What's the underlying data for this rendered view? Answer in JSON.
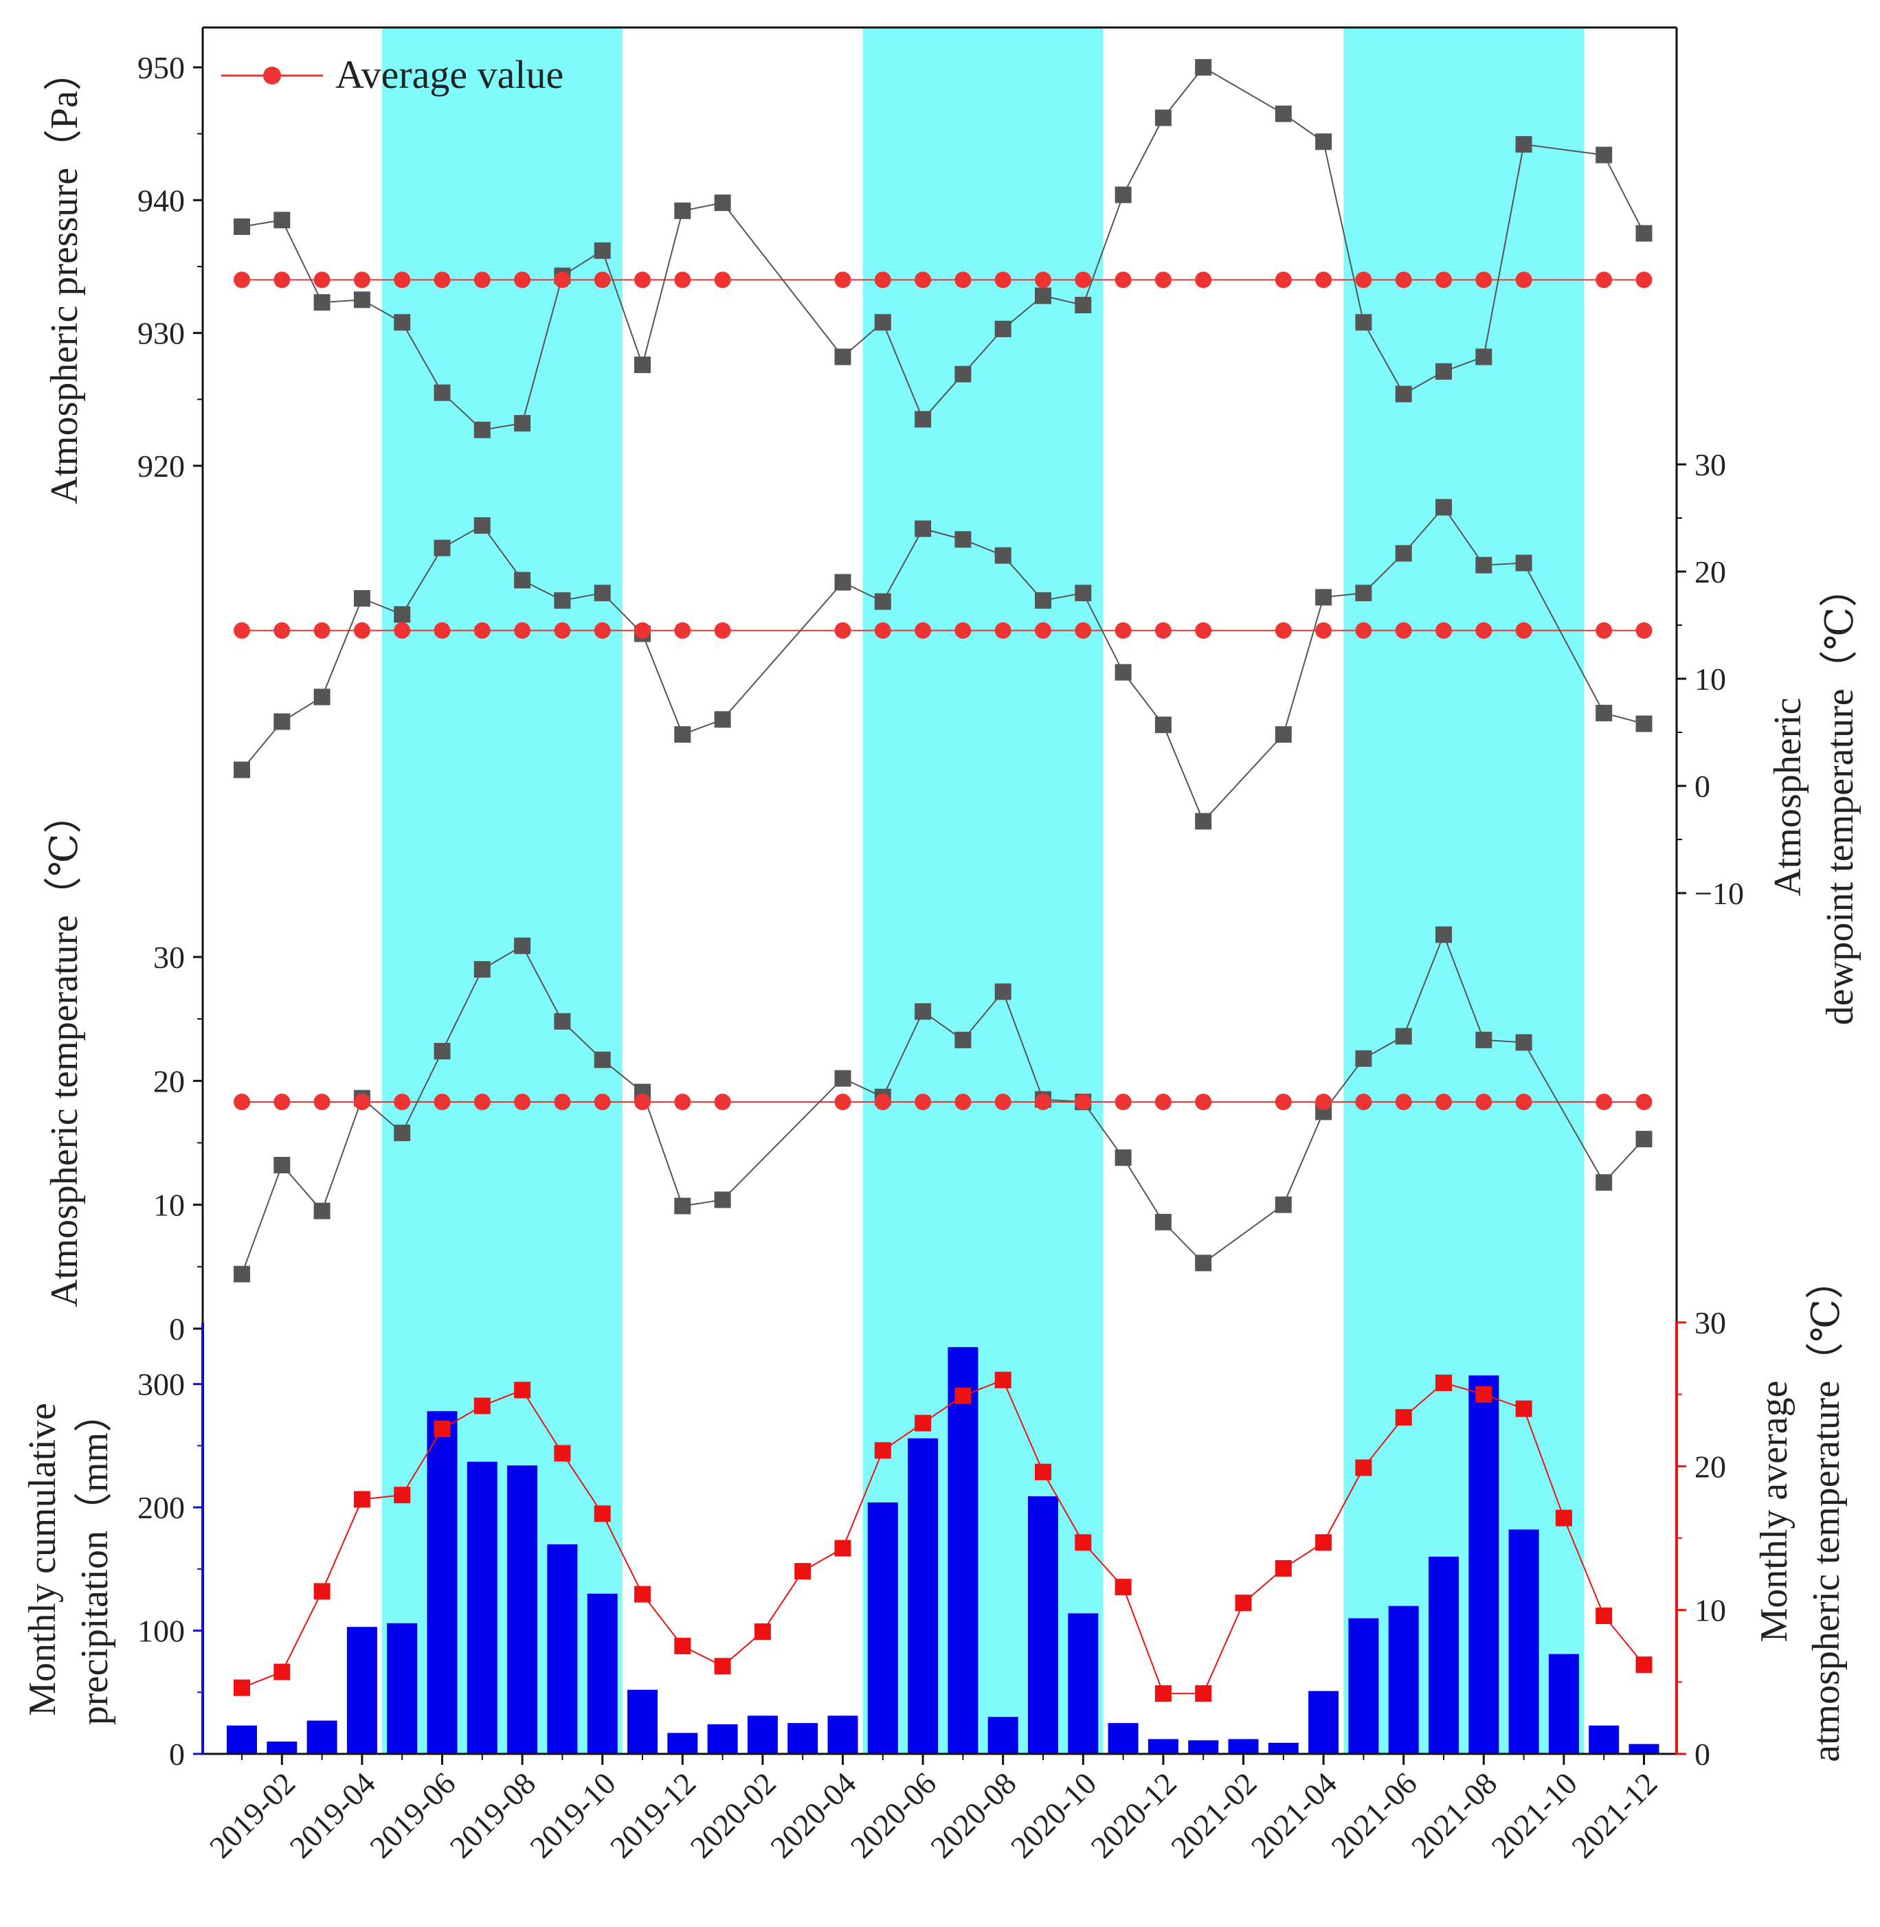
{
  "chart_data": {
    "type": "line",
    "months": [
      "2019-01",
      "2019-02",
      "2019-03",
      "2019-04",
      "2019-05",
      "2019-06",
      "2019-07",
      "2019-08",
      "2019-09",
      "2019-10",
      "2019-11",
      "2019-12",
      "2020-01",
      "2020-02",
      "2020-03",
      "2020-04",
      "2020-05",
      "2020-06",
      "2020-07",
      "2020-08",
      "2020-09",
      "2020-10",
      "2020-11",
      "2020-12",
      "2021-01",
      "2021-02",
      "2021-03",
      "2021-04",
      "2021-05",
      "2021-06",
      "2021-07",
      "2021-08",
      "2021-09",
      "2021-10",
      "2021-11",
      "2021-12"
    ],
    "x_tick_labels": [
      "2019-02",
      "2019-04",
      "2019-06",
      "2019-08",
      "2019-10",
      "2019-12",
      "2020-02",
      "2020-04",
      "2020-06",
      "2020-08",
      "2020-10",
      "2020-12",
      "2021-02",
      "2021-04",
      "2021-06",
      "2021-08",
      "2021-10",
      "2021-12"
    ],
    "x_tick_months": [
      "2019-02",
      "2019-04",
      "2019-06",
      "2019-08",
      "2019-10",
      "2019-12",
      "2020-02",
      "2020-04",
      "2020-06",
      "2020-08",
      "2020-10",
      "2020-12",
      "2021-02",
      "2021-04",
      "2021-06",
      "2021-08",
      "2021-10",
      "2021-12"
    ],
    "shaded_periods": [
      [
        "2019-05",
        "2019-10"
      ],
      [
        "2020-05",
        "2020-10"
      ],
      [
        "2021-05",
        "2021-10"
      ]
    ],
    "legend": {
      "label": "Average value",
      "placement": "top-left"
    },
    "colors": {
      "shade": "#80FAFA",
      "series": "#555555",
      "average": "#EE3333",
      "precip": "#0000EE",
      "monthly_temp": "#EE1111"
    },
    "panels": {
      "pressure": {
        "ylabel": "Atmospheric pressure（Pa）",
        "ylim": [
          920,
          950
        ],
        "ticks": [
          "920",
          "930",
          "940",
          "950"
        ],
        "average": 934,
        "months": [
          "2019-01",
          "2019-02",
          "2019-03",
          "2019-04",
          "2019-05",
          "2019-06",
          "2019-07",
          "2019-08",
          "2019-09",
          "2019-10",
          "2019-11",
          "2019-12",
          "2020-01",
          "2020-04",
          "2020-05",
          "2020-06",
          "2020-07",
          "2020-08",
          "2020-09",
          "2020-10",
          "2020-11",
          "2020-12",
          "2021-01",
          "2021-03",
          "2021-04",
          "2021-05",
          "2021-06",
          "2021-07",
          "2021-08",
          "2021-09",
          "2021-11",
          "2021-12"
        ],
        "values": [
          938,
          938.5,
          932.3,
          932.5,
          930.8,
          925.5,
          922.7,
          923.2,
          934.3,
          936.2,
          927.6,
          939.2,
          939.8,
          928.2,
          930.8,
          923.5,
          926.9,
          930.3,
          932.8,
          932.1,
          940.4,
          946.2,
          950,
          946.5,
          944.4,
          930.8,
          925.4,
          927.1,
          928.2,
          944.2,
          943.4,
          937.5
        ]
      },
      "dewpoint": {
        "ylabel": "Atmospheric dewpoint temperature（℃）",
        "ylabel_lines": [
          "Atmospheric",
          "dewpoint temperature（℃）"
        ],
        "ylim": [
          -10,
          30
        ],
        "ticks": [
          "−10",
          "0",
          "10",
          "20",
          "30"
        ],
        "average": 14.5,
        "months": [
          "2019-01",
          "2019-02",
          "2019-03",
          "2019-04",
          "2019-05",
          "2019-06",
          "2019-07",
          "2019-08",
          "2019-09",
          "2019-10",
          "2019-11",
          "2019-12",
          "2020-01",
          "2020-04",
          "2020-05",
          "2020-06",
          "2020-07",
          "2020-08",
          "2020-09",
          "2020-10",
          "2020-11",
          "2020-12",
          "2021-01",
          "2021-03",
          "2021-04",
          "2021-05",
          "2021-06",
          "2021-07",
          "2021-08",
          "2021-09",
          "2021-11",
          "2021-12"
        ],
        "values": [
          1.5,
          6,
          8.3,
          17.5,
          16,
          22.2,
          24.3,
          19.2,
          17.3,
          18,
          14.2,
          4.8,
          6.2,
          19,
          17.2,
          24,
          23,
          21.5,
          17.3,
          18,
          10.6,
          5.7,
          -3.3,
          4.8,
          17.6,
          18,
          21.7,
          26,
          20.6,
          20.8,
          6.8,
          5.8
        ]
      },
      "temperature": {
        "ylabel": "Atmospheric temperature（℃）",
        "ylim": [
          0,
          30
        ],
        "ticks": [
          "0",
          "10",
          "20",
          "30"
        ],
        "average": 18.3,
        "months": [
          "2019-01",
          "2019-02",
          "2019-03",
          "2019-04",
          "2019-05",
          "2019-06",
          "2019-07",
          "2019-08",
          "2019-09",
          "2019-10",
          "2019-11",
          "2019-12",
          "2020-01",
          "2020-04",
          "2020-05",
          "2020-06",
          "2020-07",
          "2020-08",
          "2020-09",
          "2020-10",
          "2020-11",
          "2020-12",
          "2021-01",
          "2021-03",
          "2021-04",
          "2021-05",
          "2021-06",
          "2021-07",
          "2021-08",
          "2021-09",
          "2021-11",
          "2021-12"
        ],
        "values": [
          4.4,
          13.2,
          9.5,
          18.6,
          15.8,
          22.4,
          29,
          30.9,
          24.8,
          21.7,
          19.1,
          9.9,
          10.4,
          20.2,
          18.7,
          25.6,
          23.3,
          27.2,
          18.5,
          18.3,
          13.8,
          8.6,
          5.3,
          10,
          17.5,
          21.8,
          23.6,
          31.8,
          23.3,
          23.1,
          11.8,
          15.3
        ]
      },
      "precipitation": {
        "ylabel": "Monthly cumulative precipitation（mm）",
        "ylabel_lines": [
          "Monthly cumulative",
          "precipitation（mm）"
        ],
        "ylim": [
          0,
          350
        ],
        "ticks": [
          "0",
          "100",
          "200",
          "300"
        ],
        "values": [
          23,
          10,
          27,
          103,
          106,
          278,
          237,
          234,
          170,
          130,
          52,
          17,
          24,
          31,
          25,
          31,
          204,
          256,
          330,
          30,
          209,
          114,
          25,
          12,
          11,
          12,
          9,
          51,
          110,
          120,
          160,
          307,
          182,
          81,
          23,
          8
        ]
      },
      "monthly_temperature": {
        "ylabel": "Monthly average atmospheric temperature（℃）",
        "ylabel_lines": [
          "Monthly average",
          "atmospheric temperature（℃）"
        ],
        "ylim": [
          0,
          30
        ],
        "ticks": [
          "0",
          "10",
          "20",
          "30"
        ],
        "values": [
          4.6,
          5.7,
          11.3,
          17.7,
          18,
          22.6,
          24.2,
          25.3,
          20.9,
          16.7,
          11.1,
          7.5,
          6.1,
          8.5,
          12.7,
          14.3,
          21.1,
          23,
          24.9,
          26,
          19.6,
          14.7,
          11.6,
          4.2,
          4.2,
          10.5,
          12.9,
          14.7,
          19.9,
          23.4,
          25.8,
          25,
          24,
          16.4,
          9.6,
          6.2
        ]
      }
    }
  }
}
